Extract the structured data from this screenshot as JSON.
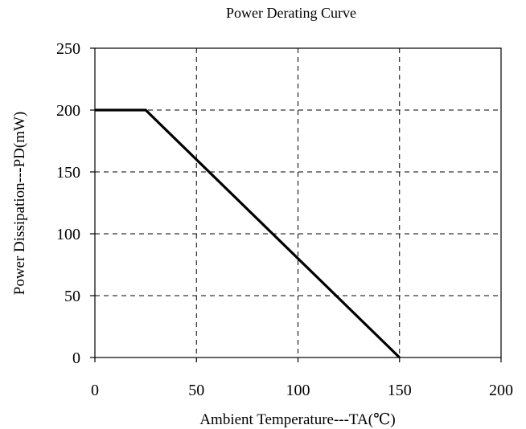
{
  "chart_data": {
    "type": "line",
    "title": "Power Derating Curve",
    "xlabel": "Ambient Temperature---TA(℃)",
    "ylabel": "Power Dissipation---PD(mW)",
    "xlim": [
      0,
      200
    ],
    "ylim": [
      0,
      250
    ],
    "x_ticks": [
      "0",
      "50",
      "100",
      "150",
      "200"
    ],
    "y_ticks": [
      "0",
      "50",
      "100",
      "150",
      "200",
      "250"
    ],
    "grid": true,
    "series": [
      {
        "x": [
          0,
          25,
          150
        ],
        "y": [
          200,
          200,
          0
        ],
        "color": "#000000"
      }
    ]
  }
}
